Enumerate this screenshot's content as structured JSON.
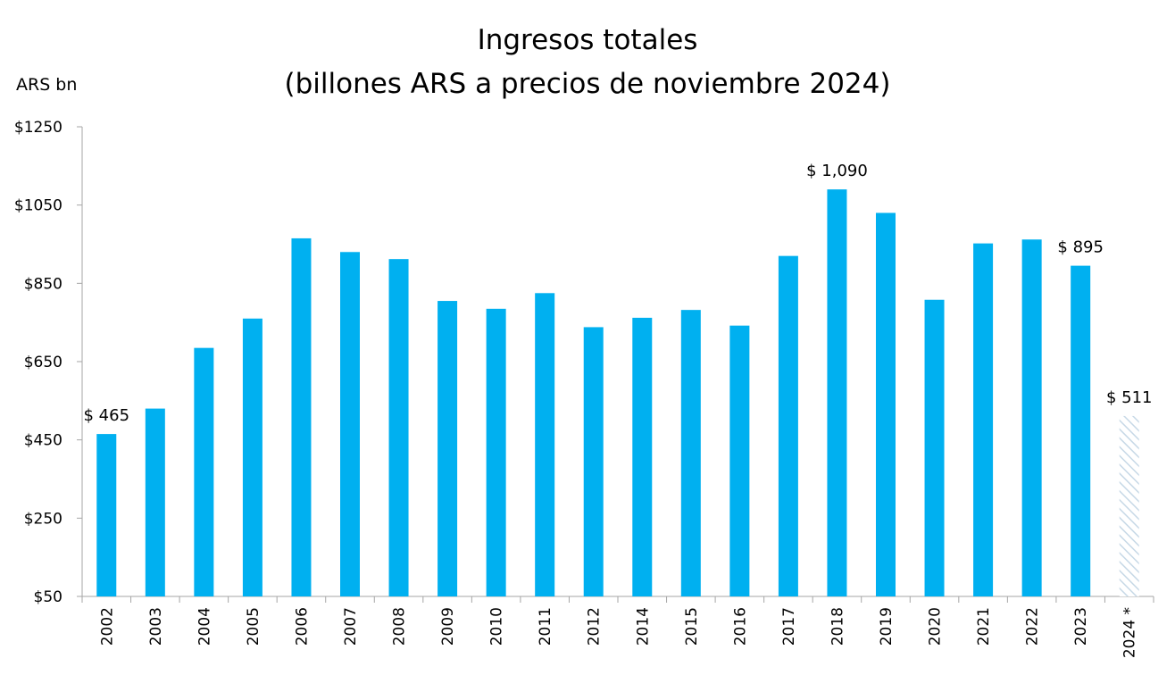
{
  "chart_data": {
    "type": "bar",
    "title": "Ingresos totales",
    "subtitle": "(billones ARS a precios de noviembre 2024)",
    "ylabel": "ARS bn",
    "xlabel": "",
    "ylim": [
      50,
      1250
    ],
    "yticks": [
      50,
      250,
      450,
      650,
      850,
      1050,
      1250
    ],
    "ytick_labels": [
      "$50",
      "$250",
      "$450",
      "$650",
      "$850",
      "$1050",
      "$1250"
    ],
    "categories": [
      "2002",
      "2003",
      "2004",
      "2005",
      "2006",
      "2007",
      "2008",
      "2009",
      "2010",
      "2011",
      "2012",
      "2014",
      "2015",
      "2016",
      "2017",
      "2018",
      "2019",
      "2020",
      "2021",
      "2022",
      "2023",
      "2024 *"
    ],
    "values": [
      465,
      530,
      685,
      760,
      965,
      930,
      912,
      805,
      785,
      825,
      738,
      762,
      782,
      742,
      920,
      1090,
      1030,
      808,
      952,
      962,
      895,
      511
    ],
    "data_labels": [
      {
        "index": 0,
        "text": "$ 465"
      },
      {
        "index": 15,
        "text": "$ 1,090"
      },
      {
        "index": 20,
        "text": "$ 895"
      },
      {
        "index": 21,
        "text": "$ 511"
      }
    ],
    "estimated_categories": [
      "2024 *"
    ],
    "grid": false,
    "legend": "none"
  },
  "colors": {
    "bar": "#00B0F0",
    "estimate_hatch": "#C6D8E6",
    "axis": "#A6A6A6",
    "text": "#000000"
  }
}
